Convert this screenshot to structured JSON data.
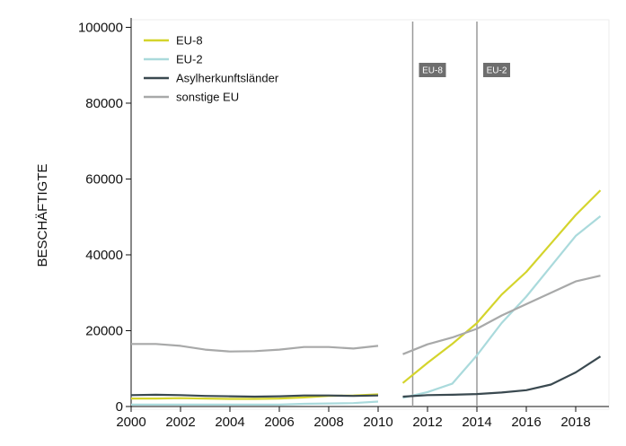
{
  "chart_data": {
    "type": "line",
    "title": "",
    "xlabel": "",
    "ylabel": "BESCHÄFTIGTE",
    "xlim": [
      2000,
      2019.3
    ],
    "ylim": [
      0,
      102000
    ],
    "xticks": [
      2000,
      2002,
      2004,
      2006,
      2008,
      2010,
      2012,
      2014,
      2016,
      2018
    ],
    "yticks": [
      0,
      20000,
      40000,
      60000,
      80000,
      100000
    ],
    "grid": false,
    "legend_position": "top-left",
    "series": [
      {
        "name": "EU-8",
        "color": "#d4d42c",
        "segments": [
          {
            "x": [
              2000,
              2001,
              2002,
              2003,
              2004,
              2005,
              2006,
              2007,
              2008,
              2009,
              2010
            ],
            "y": [
              2100,
              2100,
              2200,
              2100,
              2000,
              2000,
              2100,
              2400,
              2800,
              2900,
              3200
            ]
          },
          {
            "x": [
              2011,
              2012,
              2013,
              2014,
              2015,
              2016,
              2017,
              2018,
              2019
            ],
            "y": [
              6200,
              11500,
              16500,
              22000,
              29500,
              35500,
              43000,
              50500,
              57000
            ]
          }
        ]
      },
      {
        "name": "EU-2",
        "color": "#aadadc",
        "segments": [
          {
            "x": [
              2000,
              2001,
              2002,
              2003,
              2004,
              2005,
              2006,
              2007,
              2008,
              2009,
              2010
            ],
            "y": [
              500,
              500,
              500,
              500,
              500,
              500,
              500,
              700,
              800,
              900,
              1300
            ]
          },
          {
            "x": [
              2011,
              2012,
              2013,
              2014,
              2015,
              2016,
              2017,
              2018,
              2019
            ],
            "y": [
              2300,
              3800,
              6000,
              13500,
              22000,
              29000,
              37000,
              45000,
              50200
            ]
          }
        ]
      },
      {
        "name": "Asylherkunftsländer",
        "color": "#3a4950",
        "segments": [
          {
            "x": [
              2000,
              2001,
              2002,
              2003,
              2004,
              2005,
              2006,
              2007,
              2008,
              2009,
              2010
            ],
            "y": [
              3000,
              3100,
              3000,
              2800,
              2700,
              2600,
              2700,
              2900,
              2900,
              2800,
              2900
            ]
          },
          {
            "x": [
              2011,
              2012,
              2013,
              2014,
              2015,
              2016,
              2017,
              2018,
              2019
            ],
            "y": [
              2600,
              3000,
              3100,
              3300,
              3700,
              4300,
              5800,
              9000,
              13200
            ]
          }
        ]
      },
      {
        "name": "sonstige EU",
        "color": "#a8a9a9",
        "segments": [
          {
            "x": [
              2000,
              2001,
              2002,
              2003,
              2004,
              2005,
              2006,
              2007,
              2008,
              2009,
              2010
            ],
            "y": [
              16500,
              16500,
              16000,
              15000,
              14500,
              14600,
              15000,
              15700,
              15700,
              15300,
              16000
            ]
          },
          {
            "x": [
              2011,
              2012,
              2013,
              2014,
              2015,
              2016,
              2017,
              2018,
              2019
            ],
            "y": [
              13800,
              16400,
              18200,
              20500,
              24000,
              27000,
              30000,
              33000,
              34500
            ]
          }
        ]
      }
    ],
    "annotations": [
      {
        "x": 2011.4,
        "label": "EU-8"
      },
      {
        "x": 2014,
        "label": "EU-2"
      }
    ]
  }
}
